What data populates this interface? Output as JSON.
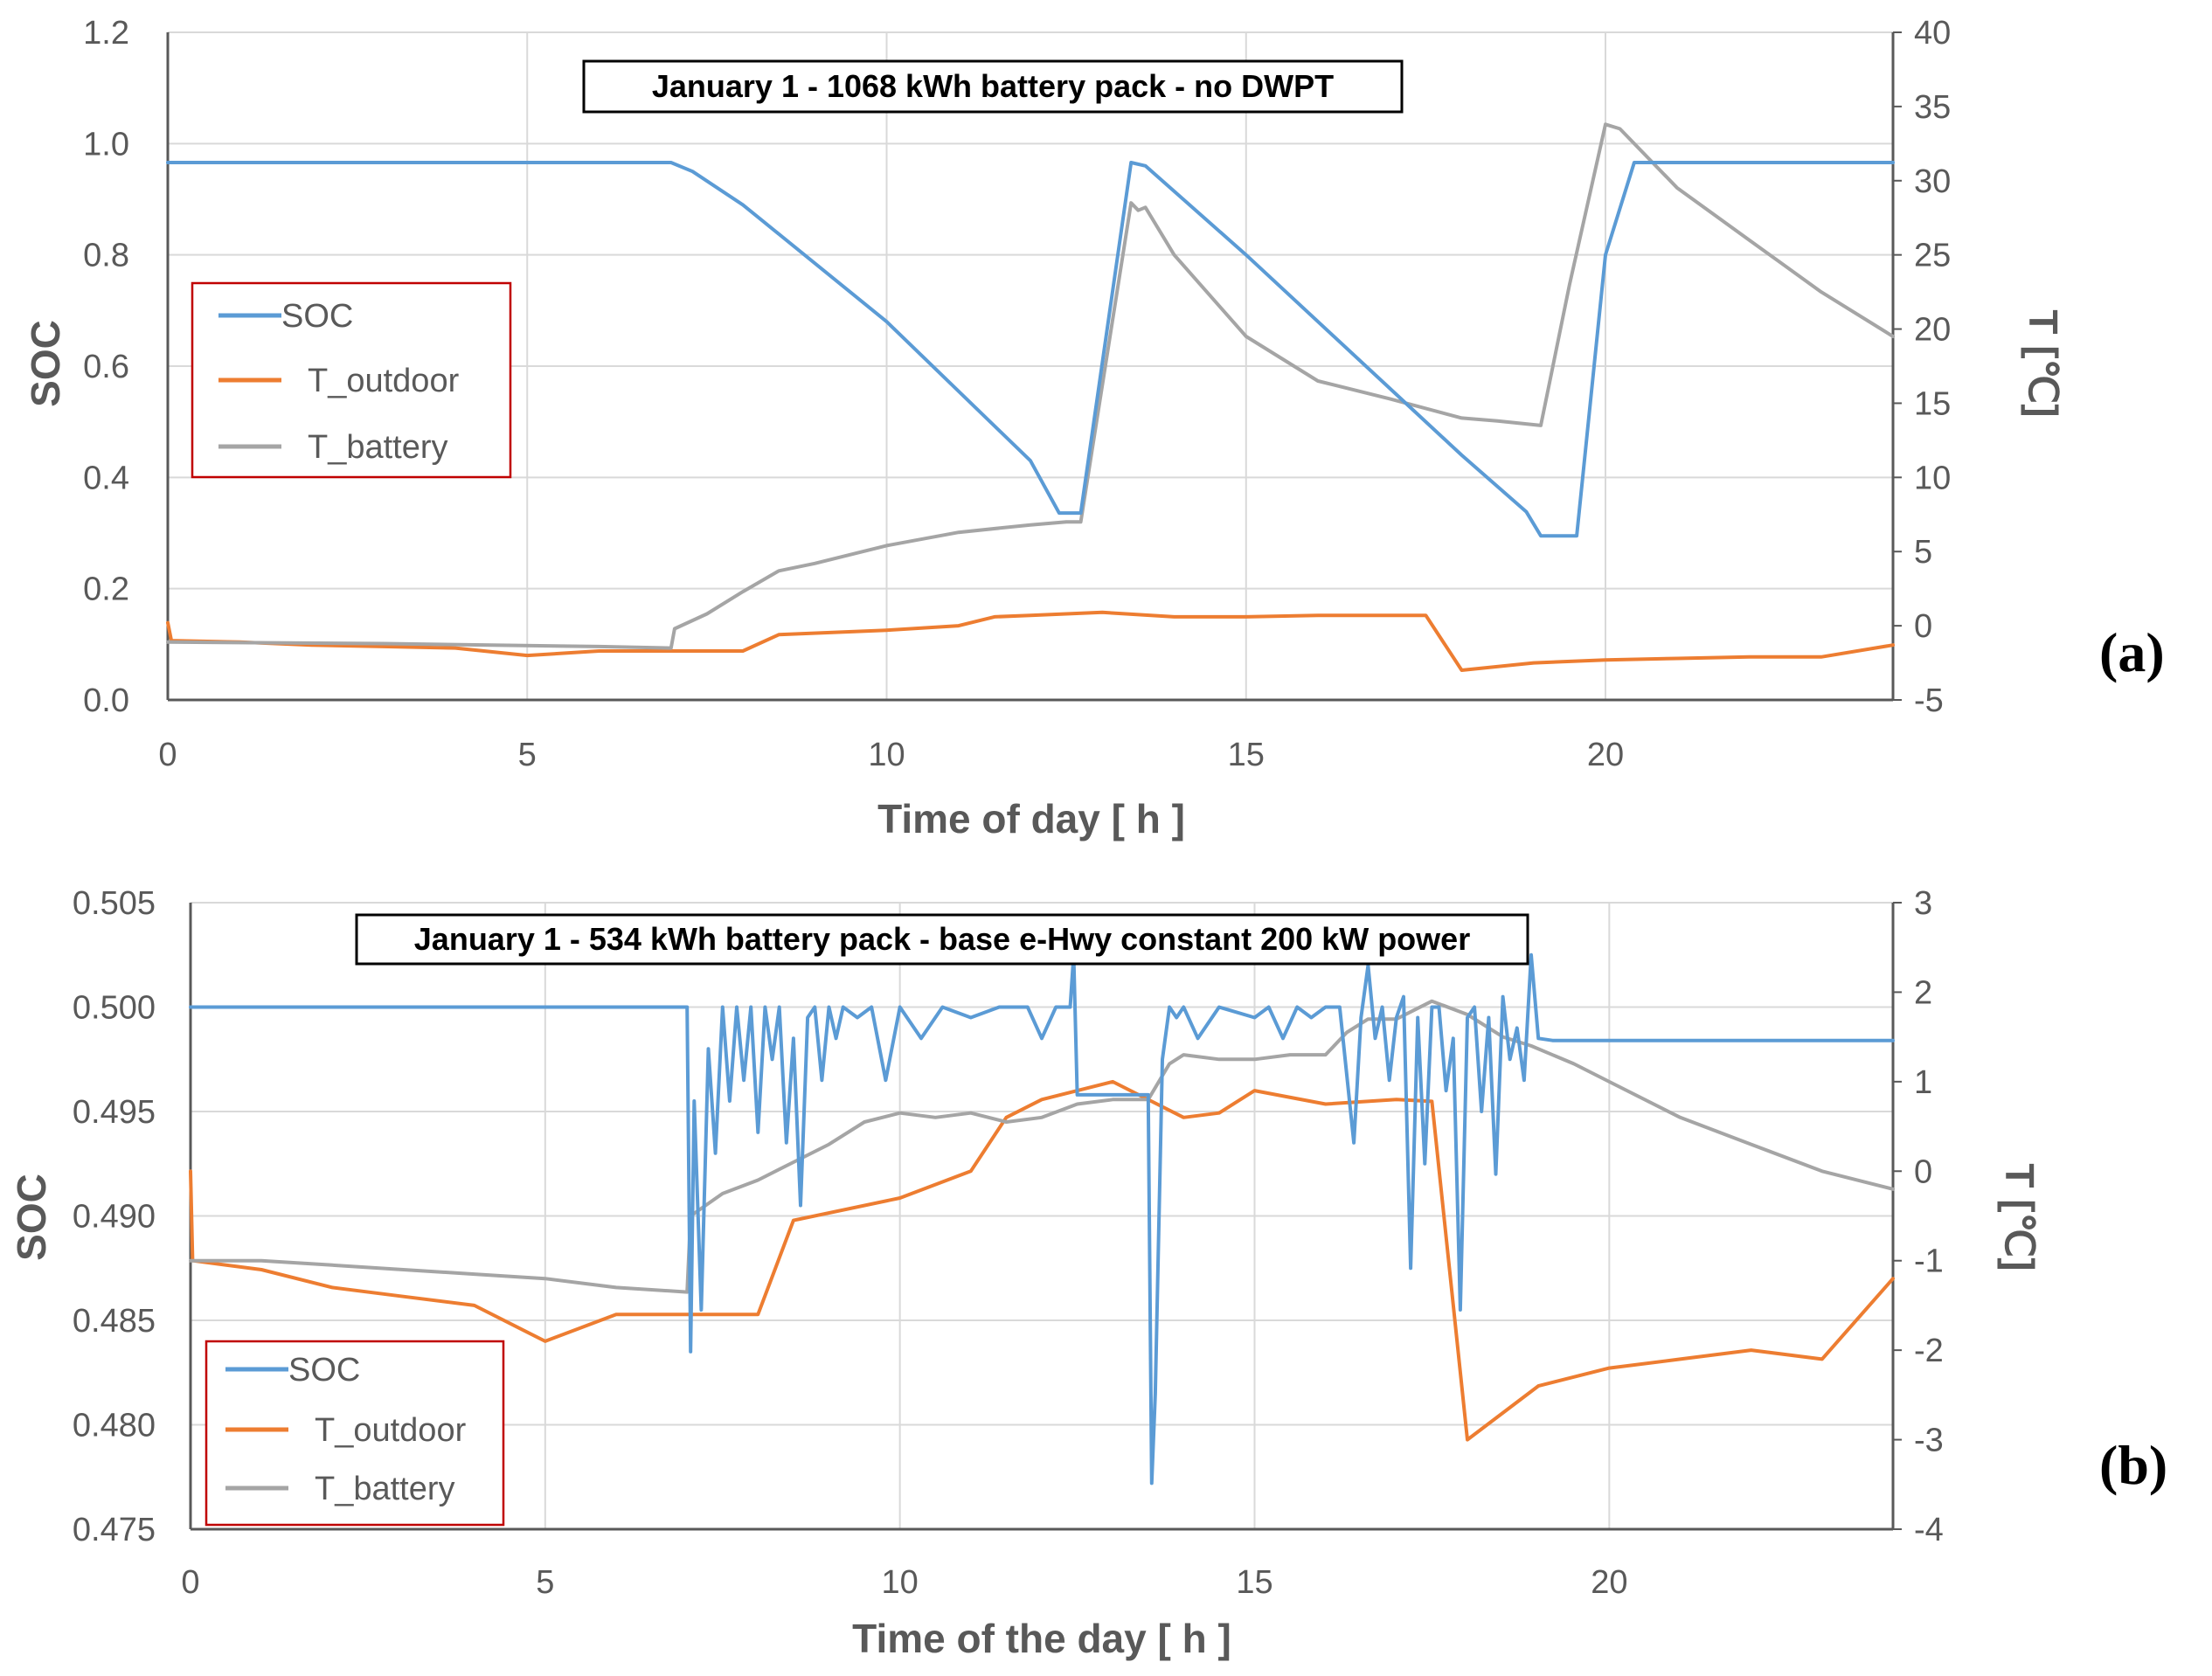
{
  "colors": {
    "soc": "#5B9BD5",
    "t_outdoor": "#ED7D31",
    "t_battery": "#A5A5A5",
    "axis": "#595959",
    "grid": "#D9D9D9",
    "legend_border": "#C00000"
  },
  "chart_data": [
    {
      "type": "line",
      "panel_label": "(a)",
      "title": "January 1 -  1068 kWh battery pack - no DWPT",
      "xlabel": "Time of day [ h ]",
      "ylabel": "SOC",
      "y2label": "T [℃]",
      "xlim": [
        0,
        24
      ],
      "ylim": [
        0,
        1.2
      ],
      "y2lim": [
        -5,
        40
      ],
      "xticks": [
        "0",
        "5",
        "10",
        "15",
        "20"
      ],
      "yticks": [
        "0.0",
        "0.2",
        "0.4",
        "0.6",
        "0.8",
        "1.0",
        "1.2"
      ],
      "y2ticks": [
        "-5",
        "0",
        "5",
        "10",
        "15",
        "20",
        "25",
        "30",
        "35",
        "40"
      ],
      "legend": [
        "SOC",
        "T_outdoor",
        "T_battery"
      ],
      "series": [
        {
          "name": "SOC",
          "axis": "left",
          "x": [
            0,
            7.0,
            7.3,
            8,
            10,
            12,
            12.4,
            12.7,
            13.4,
            13.6,
            15,
            17,
            18,
            18.9,
            19.1,
            19.6,
            20,
            20.4,
            24
          ],
          "y": [
            0.966,
            0.966,
            0.95,
            0.89,
            0.68,
            0.43,
            0.336,
            0.336,
            0.966,
            0.96,
            0.8,
            0.56,
            0.44,
            0.338,
            0.295,
            0.295,
            0.8,
            0.966,
            0.966
          ]
        },
        {
          "name": "T_outdoor",
          "axis": "right",
          "x": [
            0,
            0.05,
            1,
            2,
            3,
            4,
            5,
            6,
            7,
            8,
            8.5,
            10,
            11,
            11.5,
            12,
            13,
            14,
            15,
            16,
            17,
            17.5,
            18,
            19,
            20,
            21,
            22,
            23,
            24
          ],
          "y": [
            0.2,
            -1,
            -1.1,
            -1.3,
            -1.4,
            -1.5,
            -2,
            -1.7,
            -1.7,
            -1.7,
            -0.6,
            -0.3,
            0,
            0.6,
            0.7,
            0.9,
            0.6,
            0.6,
            0.7,
            0.7,
            0.7,
            -3,
            -2.5,
            -2.3,
            -2.2,
            -2.1,
            -2.1,
            -1.3
          ]
        },
        {
          "name": "T_battery",
          "axis": "right",
          "x": [
            0,
            3,
            6,
            7.0,
            7.05,
            7.5,
            8,
            8.5,
            9,
            10,
            11,
            12,
            12.5,
            12.7,
            13.4,
            13.5,
            13.6,
            14,
            15,
            16,
            17,
            18,
            18.5,
            19.1,
            19.5,
            20,
            20.2,
            21,
            22,
            23,
            24
          ],
          "y": [
            -1.1,
            -1.2,
            -1.4,
            -1.5,
            -0.2,
            0.8,
            2.3,
            3.7,
            4.2,
            5.4,
            6.3,
            6.8,
            7,
            7,
            28.5,
            28,
            28.2,
            25,
            19.5,
            16.5,
            15.3,
            14,
            13.8,
            13.5,
            23,
            33.8,
            33.5,
            29.5,
            26,
            22.5,
            19.5
          ]
        }
      ]
    },
    {
      "type": "line",
      "panel_label": "(b)",
      "title": "January 1 -  534 kWh battery pack - base e-Hwy constant 200 kW power",
      "xlabel": "Time of the day [ h ]",
      "ylabel": "SOC",
      "y2label": "T [℃]",
      "xlim": [
        0,
        24
      ],
      "ylim": [
        0.475,
        0.505
      ],
      "y2lim": [
        -4,
        3
      ],
      "xticks": [
        "0",
        "5",
        "10",
        "15",
        "20"
      ],
      "yticks": [
        "0.475",
        "0.480",
        "0.485",
        "0.490",
        "0.495",
        "0.500",
        "0.505"
      ],
      "y2ticks": [
        "-4",
        "-3",
        "-2",
        "-1",
        "0",
        "1",
        "2",
        "3"
      ],
      "legend": [
        "SOC",
        "T_outdoor",
        "T_battery"
      ],
      "series": [
        {
          "name": "SOC",
          "axis": "left",
          "x": [
            0,
            7.0,
            7.05,
            7.1,
            7.2,
            7.3,
            7.4,
            7.5,
            7.6,
            7.7,
            7.8,
            7.9,
            8.0,
            8.1,
            8.2,
            8.3,
            8.4,
            8.5,
            8.6,
            8.7,
            8.8,
            8.9,
            9.0,
            9.1,
            9.2,
            9.4,
            9.6,
            9.8,
            10.0,
            10.3,
            10.6,
            11.0,
            11.4,
            11.8,
            12.0,
            12.2,
            12.4,
            12.45,
            12.5,
            13.0,
            13.5,
            13.55,
            13.6,
            13.7,
            13.8,
            13.9,
            14.0,
            14.2,
            14.5,
            15.0,
            15.2,
            15.4,
            15.6,
            15.8,
            16.0,
            16.2,
            16.4,
            16.5,
            16.6,
            16.7,
            16.8,
            16.9,
            17.0,
            17.1,
            17.2,
            17.3,
            17.4,
            17.5,
            17.6,
            17.7,
            17.8,
            17.9,
            18.0,
            18.1,
            18.2,
            18.3,
            18.4,
            18.5,
            18.6,
            18.7,
            18.8,
            18.9,
            19.0,
            19.2,
            24
          ],
          "y": [
            0.5,
            0.5,
            0.4835,
            0.4955,
            0.4855,
            0.498,
            0.493,
            0.5,
            0.4955,
            0.5,
            0.4965,
            0.5,
            0.494,
            0.5,
            0.4975,
            0.5,
            0.4935,
            0.4985,
            0.4905,
            0.4995,
            0.5,
            0.4965,
            0.5,
            0.4985,
            0.5,
            0.4995,
            0.5,
            0.4965,
            0.5,
            0.4985,
            0.5,
            0.4995,
            0.5,
            0.5,
            0.4985,
            0.5,
            0.5,
            0.5025,
            0.4958,
            0.4958,
            0.4958,
            0.4772,
            0.4815,
            0.4975,
            0.5,
            0.4995,
            0.5,
            0.4985,
            0.5,
            0.4995,
            0.5,
            0.4985,
            0.5,
            0.4995,
            0.5,
            0.5,
            0.4935,
            0.4995,
            0.502,
            0.4985,
            0.5,
            0.4965,
            0.4995,
            0.5005,
            0.4875,
            0.4995,
            0.4925,
            0.5,
            0.5,
            0.496,
            0.4985,
            0.4855,
            0.4995,
            0.5,
            0.495,
            0.4995,
            0.492,
            0.5005,
            0.4975,
            0.499,
            0.4965,
            0.5025,
            0.4985,
            0.4984,
            0.4984
          ]
        },
        {
          "name": "T_outdoor",
          "axis": "right",
          "x": [
            0,
            0.03,
            1,
            2,
            3,
            4,
            5,
            6,
            7,
            8,
            8.5,
            10,
            11,
            11.5,
            12,
            13,
            14,
            14.5,
            15,
            16,
            17,
            17.5,
            18,
            19,
            20,
            21,
            22,
            23,
            24
          ],
          "y": [
            0,
            -1,
            -1.1,
            -1.3,
            -1.4,
            -1.5,
            -1.9,
            -1.6,
            -1.6,
            -1.6,
            -0.55,
            -0.3,
            0,
            0.6,
            0.8,
            1,
            0.6,
            0.65,
            0.9,
            0.75,
            0.8,
            0.78,
            -3,
            -2.4,
            -2.2,
            -2.1,
            -2.0,
            -2.1,
            -1.2
          ]
        },
        {
          "name": "T_battery",
          "axis": "right",
          "x": [
            0,
            1,
            2,
            3,
            4,
            5,
            6,
            7.0,
            7.05,
            7.5,
            8,
            8.5,
            9,
            9.5,
            10,
            10.5,
            11,
            11.5,
            12,
            12.5,
            13,
            13.5,
            13.8,
            14,
            14.5,
            15,
            15.5,
            16,
            16.3,
            16.6,
            17,
            17.5,
            18,
            18.5,
            18.9,
            19.5,
            20,
            21,
            22,
            23,
            24
          ],
          "y": [
            -1,
            -1,
            -1.05,
            -1.1,
            -1.15,
            -1.2,
            -1.3,
            -1.35,
            -0.5,
            -0.25,
            -0.1,
            0.1,
            0.3,
            0.55,
            0.65,
            0.6,
            0.65,
            0.55,
            0.6,
            0.75,
            0.8,
            0.8,
            1.2,
            1.3,
            1.25,
            1.25,
            1.3,
            1.3,
            1.55,
            1.7,
            1.7,
            1.9,
            1.75,
            1.5,
            1.4,
            1.2,
            1.0,
            0.6,
            0.3,
            0.0,
            -0.2
          ]
        }
      ]
    }
  ]
}
